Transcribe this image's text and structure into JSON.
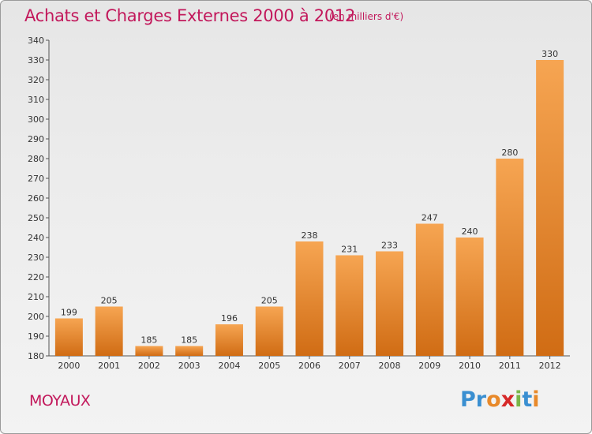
{
  "title": "Achats et Charges Externes 2000 à 2012",
  "subtitle": "(en milliers d'€)",
  "commune": "MOYAUX",
  "logo": {
    "letters": [
      "P",
      "r",
      "o",
      "x",
      "i",
      "t",
      "i"
    ],
    "colors": [
      "#3a8fd1",
      "#3a8fd1",
      "#e8892a",
      "#d62828",
      "#7ab648",
      "#3a8fd1",
      "#e8892a"
    ]
  },
  "colors": {
    "bar_top": "#f6a552",
    "bar_bottom": "#d06c14",
    "title": "#c2185b"
  },
  "chart_data": {
    "type": "bar",
    "categories": [
      "2000",
      "2001",
      "2002",
      "2003",
      "2004",
      "2005",
      "2006",
      "2007",
      "2008",
      "2009",
      "2010",
      "2011",
      "2012"
    ],
    "values": [
      199,
      205,
      185,
      185,
      196,
      205,
      238,
      231,
      233,
      247,
      240,
      280,
      330
    ],
    "title": "Achats et Charges Externes 2000 à 2012",
    "ylim": [
      180,
      340
    ],
    "yticks": [
      180,
      190,
      200,
      210,
      220,
      230,
      240,
      250,
      260,
      270,
      280,
      290,
      300,
      310,
      320,
      330,
      340
    ],
    "grid": false,
    "data_labels": true
  }
}
